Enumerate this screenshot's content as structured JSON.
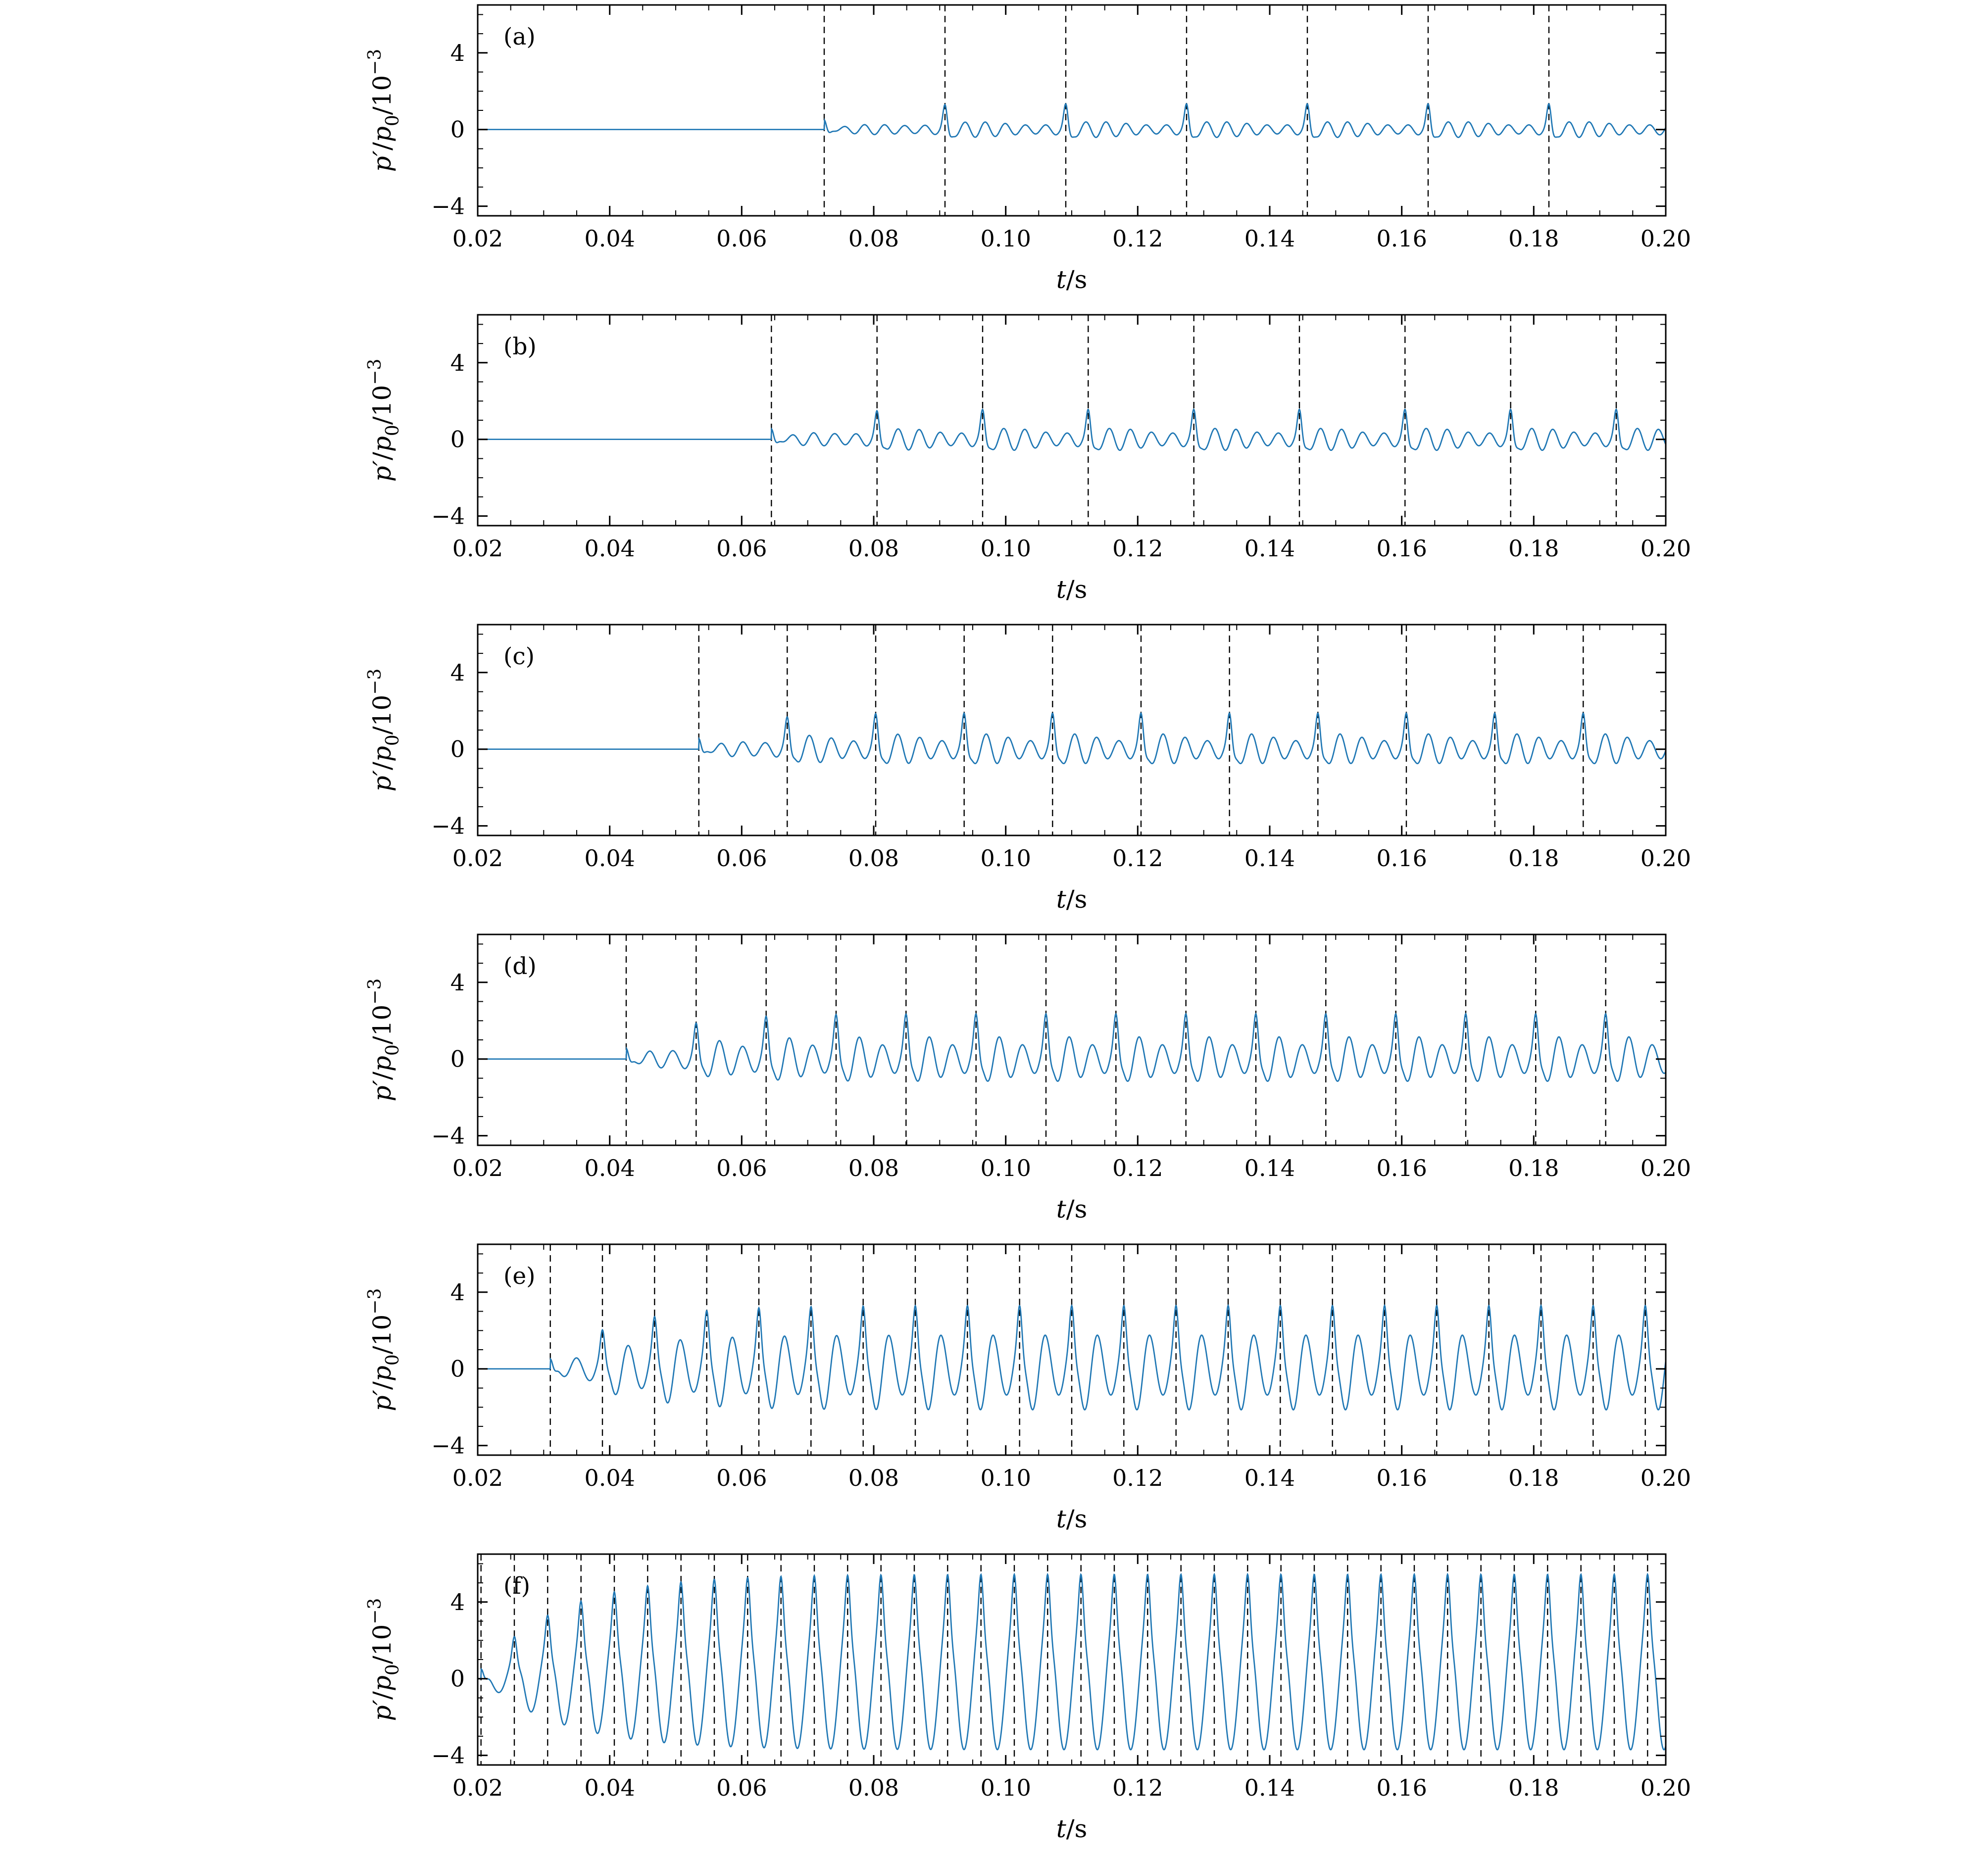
{
  "figure": {
    "background": "#ffffff",
    "line_color": "#1f77b4",
    "dash_color": "#000000",
    "xlim": [
      0.02,
      0.2
    ],
    "ylim": [
      -4.5,
      6.5
    ],
    "xtick_values": [
      0.02,
      0.04,
      0.06,
      0.08,
      0.1,
      0.12,
      0.14,
      0.16,
      0.18,
      0.2
    ],
    "xtick_labels": [
      "0.02",
      "0.04",
      "0.06",
      "0.08",
      "0.10",
      "0.12",
      "0.14",
      "0.16",
      "0.18",
      "0.20"
    ],
    "ytick_values": [
      -4,
      0,
      4
    ],
    "ytick_labels": [
      "−4",
      "0",
      "4"
    ],
    "xlabel": "t/s",
    "ylabel": "p′/p₀/10⁻³",
    "xlabel_parts": [
      {
        "text": "t",
        "italic": true
      },
      {
        "text": "/s",
        "italic": false
      }
    ],
    "ylabel_parts": [
      {
        "text": "p′",
        "italic": true
      },
      {
        "text": "/",
        "italic": false
      },
      {
        "text": "p",
        "italic": true
      },
      {
        "text": "0",
        "sub": true
      },
      {
        "text": "/10",
        "italic": false
      },
      {
        "text": "−3",
        "sup": true
      }
    ]
  },
  "chart_data": [
    {
      "type": "line",
      "label": "(a)",
      "xlabel": "t/s",
      "ylabel": "p′/p₀/10⁻³",
      "xlim": [
        0.02,
        0.2
      ],
      "ylim": [
        -4.5,
        6.5
      ],
      "xticks": [
        0.02,
        0.04,
        0.06,
        0.08,
        0.1,
        0.12,
        0.14,
        0.16,
        0.18,
        0.2
      ],
      "yticks": [
        -4,
        0,
        4
      ],
      "onset_s": 0.0725,
      "carrier_freq_hz": 327.87,
      "base_amplitude": 0.32,
      "spike_amplitude": 1.05,
      "ramp_s": 0.006,
      "mod_depth": 0.28,
      "mod_period_s": 0.0183,
      "spike_times_s": [
        0.0725,
        0.0908,
        0.1091,
        0.1274,
        0.1457,
        0.164,
        0.1823
      ]
    },
    {
      "type": "line",
      "label": "(b)",
      "xlabel": "t/s",
      "ylabel": "p′/p₀/10⁻³",
      "xlim": [
        0.02,
        0.2
      ],
      "ylim": [
        -4.5,
        6.5
      ],
      "xticks": [
        0.02,
        0.04,
        0.06,
        0.08,
        0.1,
        0.12,
        0.14,
        0.16,
        0.18,
        0.2
      ],
      "yticks": [
        -4,
        0,
        4
      ],
      "onset_s": 0.0645,
      "carrier_freq_hz": 312.5,
      "base_amplitude": 0.45,
      "spike_amplitude": 1.15,
      "ramp_s": 0.006,
      "mod_depth": 0.28,
      "mod_period_s": 0.016,
      "spike_times_s": [
        0.0645,
        0.0805,
        0.0965,
        0.1125,
        0.1285,
        0.1445,
        0.1605,
        0.1765,
        0.1925
      ]
    },
    {
      "type": "line",
      "label": "(c)",
      "xlabel": "t/s",
      "ylabel": "p′/p₀/10⁻³",
      "xlim": [
        0.02,
        0.2
      ],
      "ylim": [
        -4.5,
        6.5
      ],
      "xticks": [
        0.02,
        0.04,
        0.06,
        0.08,
        0.1,
        0.12,
        0.14,
        0.16,
        0.18,
        0.2
      ],
      "yticks": [
        -4,
        0,
        4
      ],
      "onset_s": 0.0535,
      "carrier_freq_hz": 298.51,
      "base_amplitude": 0.62,
      "spike_amplitude": 1.3,
      "ramp_s": 0.007,
      "mod_depth": 0.28,
      "mod_period_s": 0.0134,
      "spike_times_s": [
        0.0535,
        0.0669,
        0.0803,
        0.0937,
        0.1071,
        0.1205,
        0.1339,
        0.1473,
        0.1607,
        0.1741,
        0.1875
      ]
    },
    {
      "type": "line",
      "label": "(d)",
      "xlabel": "t/s",
      "ylabel": "p′/p₀/10⁻³",
      "xlim": [
        0.02,
        0.2
      ],
      "ylim": [
        -4.5,
        6.5
      ],
      "xticks": [
        0.02,
        0.04,
        0.06,
        0.08,
        0.1,
        0.12,
        0.14,
        0.16,
        0.18,
        0.2
      ],
      "yticks": [
        -4,
        0,
        4
      ],
      "onset_s": 0.0425,
      "carrier_freq_hz": 283.02,
      "base_amplitude": 0.95,
      "spike_amplitude": 1.45,
      "ramp_s": 0.008,
      "mod_depth": 0.25,
      "mod_period_s": 0.0106,
      "spike_times_s": [
        0.0425,
        0.0531,
        0.0637,
        0.0743,
        0.0849,
        0.0955,
        0.1061,
        0.1167,
        0.1273,
        0.1379,
        0.1485,
        0.1591,
        0.1697,
        0.1803,
        0.1909
      ]
    },
    {
      "type": "line",
      "label": "(e)",
      "xlabel": "t/s",
      "ylabel": "p′/p₀/10⁻³",
      "xlim": [
        0.02,
        0.2
      ],
      "ylim": [
        -4.5,
        6.5
      ],
      "xticks": [
        0.02,
        0.04,
        0.06,
        0.08,
        0.1,
        0.12,
        0.14,
        0.16,
        0.18,
        0.2
      ],
      "yticks": [
        -4,
        0,
        4
      ],
      "onset_s": 0.031,
      "carrier_freq_hz": 253.16,
      "base_amplitude": 1.75,
      "spike_amplitude": 1.6,
      "ramp_s": 0.01,
      "mod_depth": 0.22,
      "mod_period_s": 0.0079,
      "spike_times_s": [
        0.031,
        0.0389,
        0.0468,
        0.0547,
        0.0626,
        0.0705,
        0.0784,
        0.0863,
        0.0942,
        0.1021,
        0.11,
        0.1179,
        0.1258,
        0.1337,
        0.1416,
        0.1495,
        0.1574,
        0.1653,
        0.1732,
        0.1811,
        0.189,
        0.1969
      ]
    },
    {
      "type": "line",
      "label": "(f)",
      "xlabel": "t/s",
      "ylabel": "p′/p₀/10⁻³",
      "xlim": [
        0.02,
        0.2
      ],
      "ylim": [
        -4.5,
        6.5
      ],
      "xticks": [
        0.02,
        0.04,
        0.06,
        0.08,
        0.1,
        0.12,
        0.14,
        0.16,
        0.18,
        0.2
      ],
      "yticks": [
        -4,
        0,
        4
      ],
      "onset_s": 0.0205,
      "carrier_freq_hz": 198.02,
      "base_amplitude": 3.7,
      "spike_amplitude": 1.8,
      "ramp_s": 0.012,
      "mod_depth": 0.05,
      "mod_period_s": 0.00505,
      "spike_times_s": [
        0.0205,
        0.02555,
        0.0306,
        0.03565,
        0.0407,
        0.04575,
        0.0508,
        0.05585,
        0.0609,
        0.06595,
        0.071,
        0.07605,
        0.0811,
        0.08615,
        0.0912,
        0.09625,
        0.1013,
        0.10635,
        0.1114,
        0.11645,
        0.1215,
        0.12655,
        0.1316,
        0.13665,
        0.1417,
        0.14675,
        0.1518,
        0.15685,
        0.1619,
        0.16695,
        0.172,
        0.17705,
        0.1821,
        0.18715,
        0.1922,
        0.19725
      ]
    }
  ]
}
